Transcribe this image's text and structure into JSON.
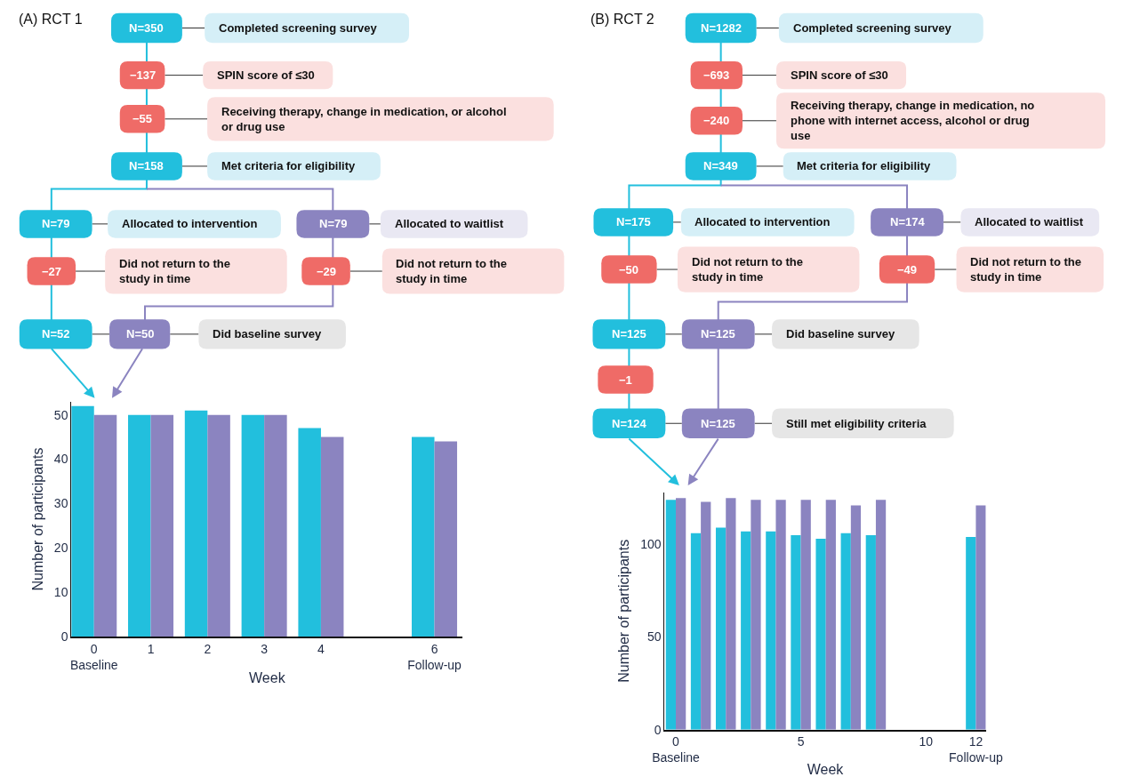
{
  "chart_data": [
    {
      "type": "other",
      "title": "(A) RCT 1",
      "annotations": [
        "N=350",
        "Completed screening survey",
        "−137",
        "SPIN score of ≤30",
        "−55",
        "Receiving therapy, change in medication, or alcohol\nor drug use",
        "N=158",
        "Met criteria for eligibility",
        "N=79",
        "Allocated to intervention",
        "N=79",
        "Allocated to waitlist",
        "−27",
        "Did not return to the\nstudy in time",
        "−29",
        "Did not return to the\nstudy in time",
        "N=52",
        "N=50",
        "Did baseline survey"
      ]
    },
    {
      "type": "bar",
      "xlabel": "Week",
      "ylabel": "Number of participants",
      "x": [
        0,
        1,
        2,
        3,
        4,
        6
      ],
      "xlim": [
        -0.4,
        6.5
      ],
      "ylim": [
        0,
        53
      ],
      "xticks": [
        {
          "value": 0,
          "label": "0\nBaseline"
        },
        1,
        2,
        3,
        4,
        {
          "value": 6,
          "label": "6\nFollow-up"
        }
      ],
      "yticks": [
        0,
        10,
        20,
        30,
        40,
        50
      ],
      "series": [
        {
          "color": "#22bfdd",
          "values": [
            52,
            50,
            51,
            50,
            47,
            45
          ]
        },
        {
          "color": "#8b84c0",
          "values": [
            50,
            50,
            50,
            50,
            45,
            44
          ]
        }
      ]
    },
    {
      "type": "other",
      "title": "(B) RCT 2",
      "annotations": [
        "N=1282",
        "Completed screening survey",
        "−693",
        "SPIN score of ≤30",
        "−240",
        "Receiving therapy, change in medication, no\nphone with internet access, alcohol or drug\nuse",
        "N=349",
        "Met criteria for eligibility",
        "N=175",
        "Allocated to intervention",
        "N=174",
        "Allocated to waitlist",
        "−50",
        "Did not return to the\nstudy in time",
        "−49",
        "Did not return to the\nstudy in time",
        "N=125",
        "N=125",
        "Did baseline survey",
        "−1",
        "N=124",
        "N=125",
        "Still met eligibility criteria"
      ]
    },
    {
      "type": "bar",
      "xlabel": "Week",
      "ylabel": "Number of participants",
      "x": [
        0,
        1,
        2,
        3,
        4,
        5,
        6,
        7,
        8,
        12
      ],
      "xlim": [
        -0.45,
        12.4
      ],
      "ylim": [
        0,
        128
      ],
      "xticks": [
        {
          "value": 0,
          "label": "0\nBaseline"
        },
        5,
        10,
        {
          "value": 12,
          "label": "12\nFollow-up"
        }
      ],
      "yticks": [
        0,
        50,
        100
      ],
      "series": [
        {
          "color": "#22bfdd",
          "values": [
            124,
            106,
            109,
            107,
            107,
            105,
            103,
            106,
            105,
            104
          ]
        },
        {
          "color": "#8b84c0",
          "values": [
            125,
            123,
            125,
            124,
            124,
            124,
            124,
            121,
            124,
            121
          ]
        }
      ]
    }
  ]
}
